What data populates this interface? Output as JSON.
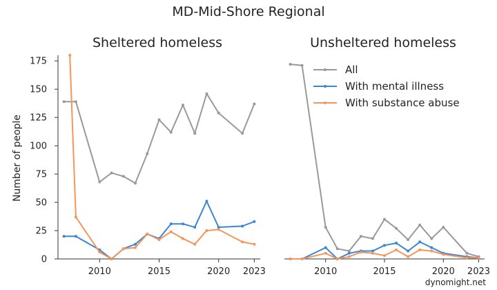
{
  "watermark": "dynomight.net",
  "chart_data": {
    "type": "line",
    "title": "MD-Mid-Shore Regional",
    "ylabel": "Number of people",
    "ylim": [
      0,
      180
    ],
    "yticks": [
      0,
      25,
      50,
      75,
      100,
      125,
      150,
      175
    ],
    "xlim": [
      2006.5,
      2023.5
    ],
    "xticks": [
      2010,
      2015,
      2020,
      2023
    ],
    "legend_position": "top-right of right panel",
    "panels": [
      {
        "title": "Sheltered homeless",
        "series": [
          {
            "name": "All",
            "color": "#999999",
            "x": [
              2007,
              2008,
              2010,
              2011,
              2012,
              2013,
              2014,
              2015,
              2016,
              2017,
              2018,
              2019,
              2020,
              2022,
              2023
            ],
            "values": [
              139,
              139,
              68,
              76,
              73,
              67,
              93,
              123,
              112,
              136,
              111,
              146,
              129,
              111,
              137
            ]
          },
          {
            "name": "With mental illness",
            "color": "#3a86d6",
            "x": [
              2007,
              2008,
              2010,
              2011,
              2012,
              2013,
              2014,
              2015,
              2016,
              2017,
              2018,
              2019,
              2020,
              2022,
              2023
            ],
            "values": [
              20,
              20,
              8,
              0,
              9,
              13,
              22,
              18,
              31,
              31,
              28,
              51,
              28,
              29,
              33
            ]
          },
          {
            "name": "With substance abuse",
            "color": "#f5955a",
            "x": [
              2007.5,
              2008,
              2010,
              2011,
              2012,
              2013,
              2014,
              2015,
              2016,
              2017,
              2018,
              2019,
              2020,
              2022,
              2023
            ],
            "values": [
              180,
              37,
              6,
              0,
              9,
              10,
              22,
              17,
              24,
              18,
              13,
              25,
              26,
              15,
              13
            ]
          }
        ]
      },
      {
        "title": "Unsheltered homeless",
        "series": [
          {
            "name": "All",
            "color": "#999999",
            "x": [
              2007,
              2008,
              2010,
              2011,
              2012,
              2013,
              2014,
              2015,
              2016,
              2017,
              2018,
              2019,
              2020,
              2022,
              2023
            ],
            "values": [
              172,
              171,
              28,
              9,
              7,
              20,
              18,
              35,
              27,
              17,
              30,
              18,
              28,
              5,
              2
            ]
          },
          {
            "name": "With mental illness",
            "color": "#3a86d6",
            "x": [
              2007,
              2008,
              2010,
              2011,
              2012,
              2013,
              2014,
              2015,
              2016,
              2017,
              2018,
              2019,
              2020,
              2022,
              2023
            ],
            "values": [
              0,
              0,
              10,
              0,
              5,
              7,
              7,
              12,
              14,
              7,
              15,
              10,
              5,
              2,
              1
            ]
          },
          {
            "name": "With substance abuse",
            "color": "#f5955a",
            "x": [
              2007,
              2008,
              2010,
              2011,
              2012,
              2013,
              2014,
              2015,
              2016,
              2017,
              2018,
              2019,
              2020,
              2022,
              2023
            ],
            "values": [
              0,
              0,
              5,
              0,
              2,
              6,
              5,
              3,
              8,
              2,
              8,
              7,
              4,
              1,
              1
            ]
          }
        ]
      }
    ]
  }
}
